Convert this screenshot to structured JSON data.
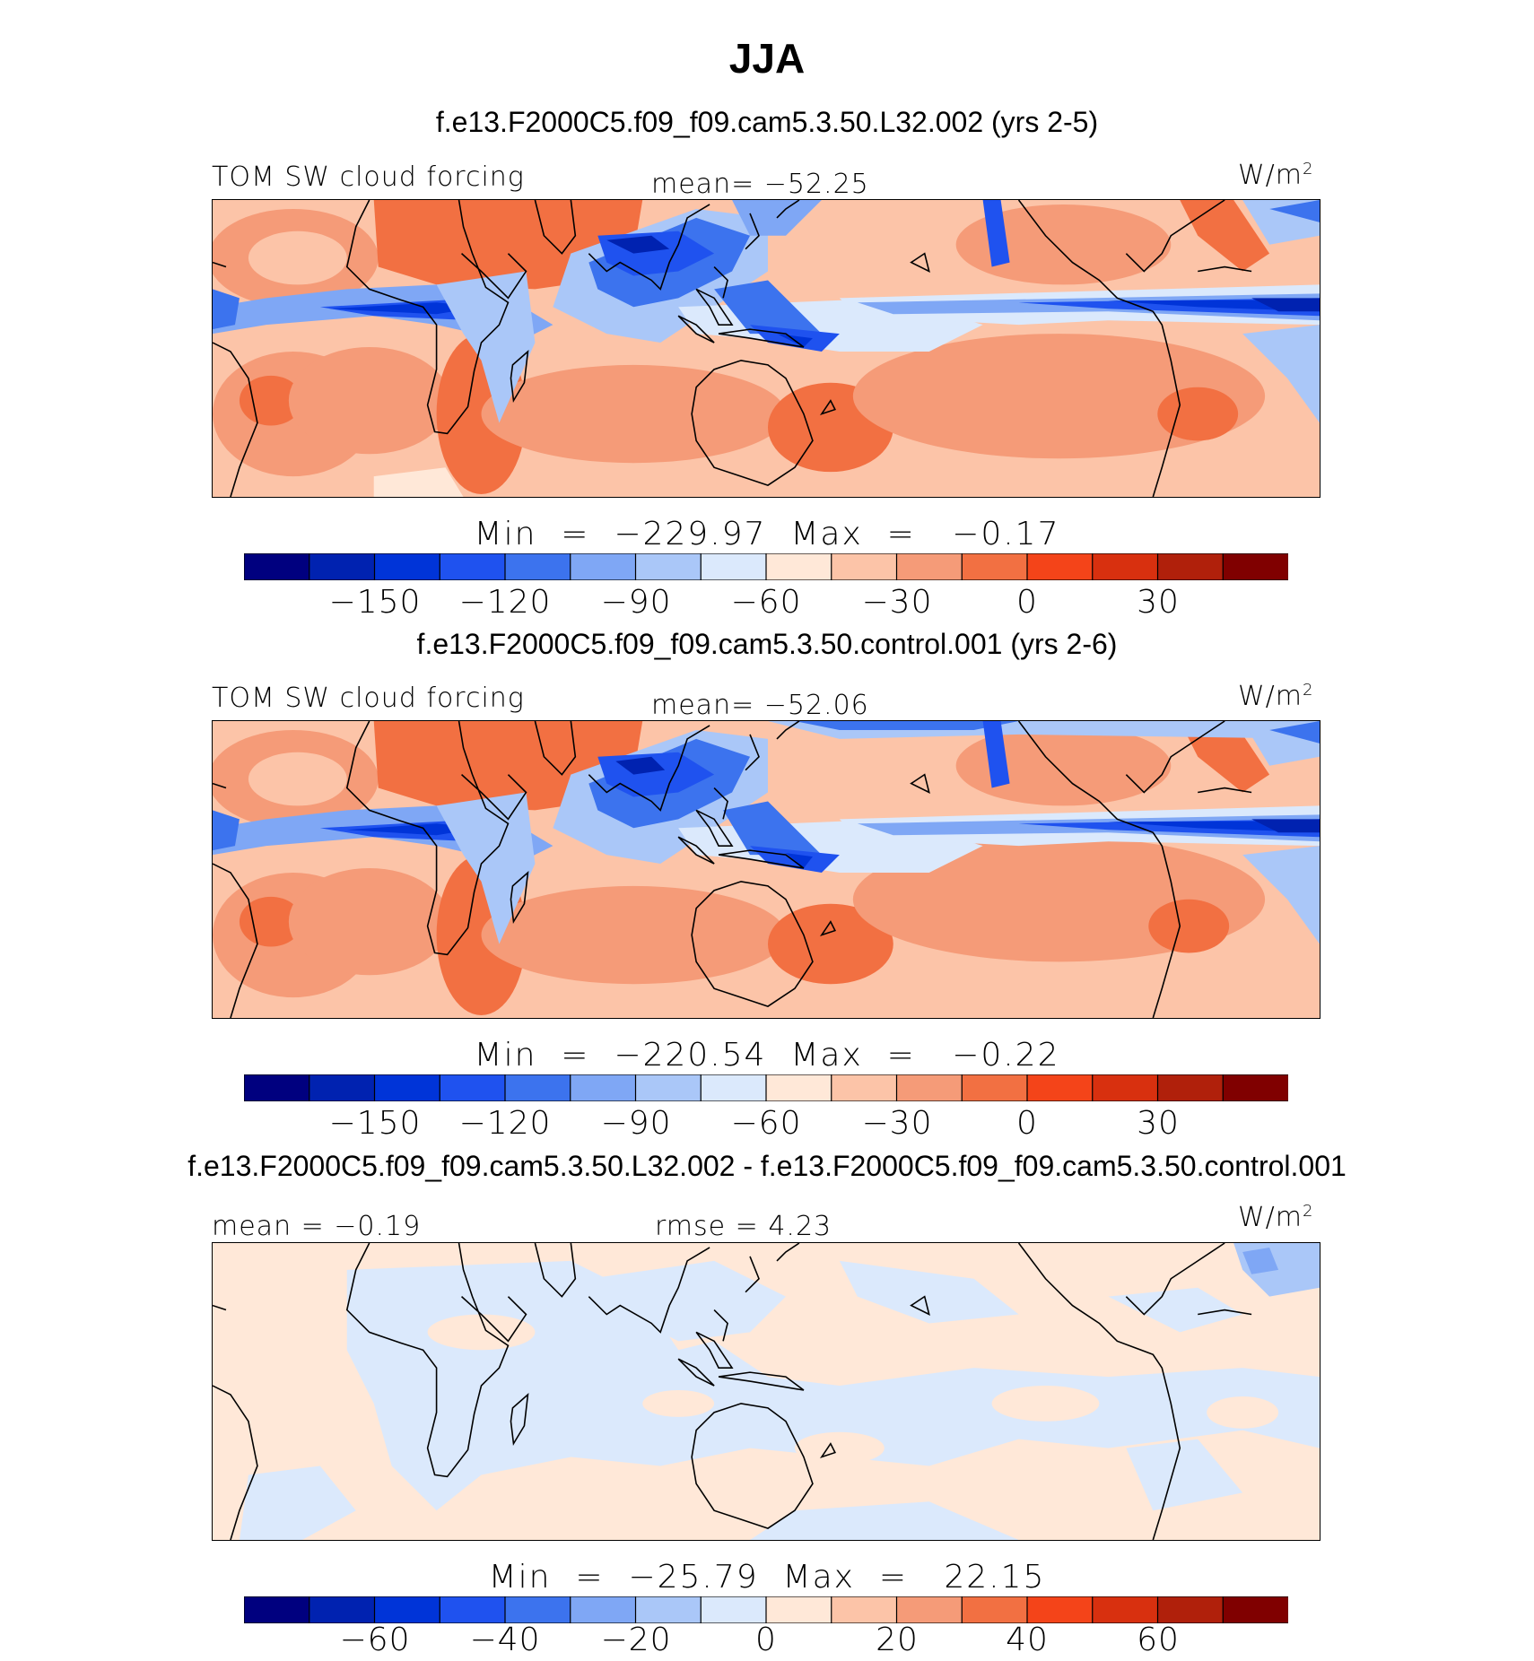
{
  "title": "JJA",
  "colors": {
    "levels": [
      "#00007f",
      "#0022b0",
      "#0034d8",
      "#1f52ef",
      "#3c73ee",
      "#7fa7f5",
      "#aac7f8",
      "#dbe9fc",
      "#ffe8d8",
      "#fcc4a8",
      "#f59b78",
      "#f27042",
      "#f44419",
      "#d8300f",
      "#b0200b",
      "#800000"
    ]
  },
  "panels": [
    {
      "case_title": "f.e13.F2000C5.f09_f09.cam5.3.50.L32.002 (yrs 2-5)",
      "left_label": "TOM SW cloud forcing",
      "center_label": "mean= −52.25",
      "units_base": "W/m",
      "units_exp": "2",
      "minmax": "Min  =  −229.97  Max  =   −0.17",
      "colorbar_ticks": [
        "−150",
        "−120",
        "−90",
        "−60",
        "−30",
        "0",
        "30"
      ]
    },
    {
      "case_title": "f.e13.F2000C5.f09_f09.cam5.3.50.control.001 (yrs 2-6)",
      "left_label": "TOM SW cloud forcing",
      "center_label": "mean= −52.06",
      "units_base": "W/m",
      "units_exp": "2",
      "minmax": "Min  =  −220.54  Max  =   −0.22",
      "colorbar_ticks": [
        "−150",
        "−120",
        "−90",
        "−60",
        "−30",
        "0",
        "30"
      ]
    },
    {
      "case_title": "f.e13.F2000C5.f09_f09.cam5.3.50.L32.002 - f.e13.F2000C5.f09_f09.cam5.3.50.control.001",
      "left_label": "mean =   −0.19",
      "center_label": "rmse =    4.23",
      "units_base": "W/m",
      "units_exp": "2",
      "minmax": "Min  =  −25.79  Max  =   22.15",
      "colorbar_ticks": [
        "−60",
        "−40",
        "−20",
        "0",
        "20",
        "40",
        "60"
      ]
    }
  ]
}
